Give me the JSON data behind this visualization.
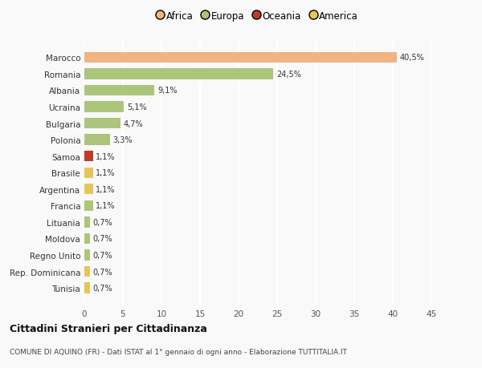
{
  "countries": [
    "Marocco",
    "Romania",
    "Albania",
    "Ucraina",
    "Bulgaria",
    "Polonia",
    "Samoa",
    "Brasile",
    "Argentina",
    "Francia",
    "Lituania",
    "Moldova",
    "Regno Unito",
    "Rep. Dominicana",
    "Tunisia"
  ],
  "values": [
    40.5,
    24.5,
    9.1,
    5.1,
    4.7,
    3.3,
    1.1,
    1.1,
    1.1,
    1.1,
    0.7,
    0.7,
    0.7,
    0.7,
    0.7
  ],
  "labels": [
    "40,5%",
    "24,5%",
    "9,1%",
    "5,1%",
    "4,7%",
    "3,3%",
    "1,1%",
    "1,1%",
    "1,1%",
    "1,1%",
    "0,7%",
    "0,7%",
    "0,7%",
    "0,7%",
    "0,7%"
  ],
  "colors": [
    "#f0b482",
    "#adc57a",
    "#adc57a",
    "#adc57a",
    "#adc57a",
    "#adc57a",
    "#c0392b",
    "#e8c45a",
    "#e8c45a",
    "#adc57a",
    "#adc57a",
    "#adc57a",
    "#adc57a",
    "#e8c45a",
    "#e8c45a"
  ],
  "continents": [
    "Africa",
    "Europa",
    "Oceania",
    "America"
  ],
  "legend_colors": [
    "#f0b482",
    "#adc57a",
    "#c0392b",
    "#e8c45a"
  ],
  "title": "Cittadini Stranieri per Cittadinanza",
  "subtitle": "COMUNE DI AQUINO (FR) - Dati ISTAT al 1° gennaio di ogni anno - Elaborazione TUTTITALIA.IT",
  "xlim": [
    0,
    45
  ],
  "xticks": [
    0,
    5,
    10,
    15,
    20,
    25,
    30,
    35,
    40,
    45
  ],
  "background_color": "#f9f9f9",
  "grid_color": "#ffffff"
}
